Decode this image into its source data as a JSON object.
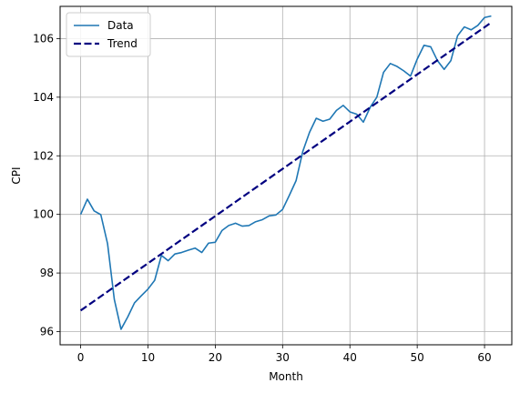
{
  "chart_data": {
    "type": "line",
    "title": "",
    "xlabel": "Month",
    "ylabel": "CPI",
    "xlim": [
      -3.05,
      64.05
    ],
    "ylim": [
      95.55,
      107.1
    ],
    "xticks": [
      0,
      10,
      20,
      30,
      40,
      50,
      60
    ],
    "yticks": [
      96,
      98,
      100,
      102,
      104,
      106
    ],
    "grid": true,
    "legend_position": "top-left",
    "series": [
      {
        "name": "Data",
        "style": "solid",
        "color": "#1f77b4",
        "x": [
          0,
          1,
          2,
          3,
          4,
          5,
          6,
          7,
          8,
          9,
          10,
          11,
          12,
          13,
          14,
          15,
          16,
          17,
          18,
          19,
          20,
          21,
          22,
          23,
          24,
          25,
          26,
          27,
          28,
          29,
          30,
          31,
          32,
          33,
          34,
          35,
          36,
          37,
          38,
          39,
          40,
          41,
          42,
          43,
          44,
          45,
          46,
          47,
          48,
          49,
          50,
          51,
          52,
          53,
          54,
          55,
          56,
          57,
          58,
          59,
          60,
          61
        ],
        "y": [
          100.0,
          100.52,
          100.12,
          99.99,
          99.0,
          97.1,
          96.08,
          96.5,
          96.98,
          97.22,
          97.45,
          97.75,
          98.6,
          98.42,
          98.65,
          98.7,
          98.78,
          98.85,
          98.7,
          99.02,
          99.05,
          99.45,
          99.62,
          99.7,
          99.6,
          99.62,
          99.75,
          99.82,
          99.95,
          99.98,
          100.17,
          100.65,
          101.15,
          102.15,
          102.8,
          103.28,
          103.18,
          103.25,
          103.55,
          103.72,
          103.5,
          103.42,
          103.15,
          103.65,
          104.0,
          104.85,
          105.15,
          105.05,
          104.9,
          104.72,
          105.3,
          105.77,
          105.72,
          105.25,
          104.95,
          105.25,
          106.1,
          106.4,
          106.3,
          106.45,
          106.72,
          106.77
        ]
      },
      {
        "name": "Trend",
        "style": "dashed",
        "color": "#000080",
        "x": [
          0,
          61
        ],
        "y": [
          96.72,
          106.55
        ]
      }
    ]
  }
}
